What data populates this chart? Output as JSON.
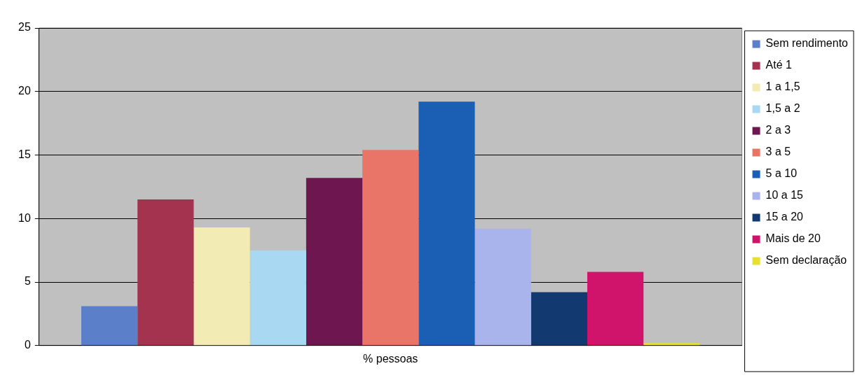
{
  "chart_data": {
    "type": "bar",
    "categories": [
      "% pessoas"
    ],
    "series": [
      {
        "name": "Sem rendimento",
        "color": "#5b7fc8",
        "values": [
          3.1
        ]
      },
      {
        "name": "Até 1",
        "color": "#a3334f",
        "values": [
          11.5
        ]
      },
      {
        "name": "1 a 1,5",
        "color": "#f2ecb4",
        "values": [
          9.3
        ]
      },
      {
        "name": "1,5 a 2",
        "color": "#a9d8f2",
        "values": [
          7.5
        ]
      },
      {
        "name": "2 a 3",
        "color": "#6e1650",
        "values": [
          13.2
        ]
      },
      {
        "name": "3 a 5",
        "color": "#e87567",
        "values": [
          15.4
        ]
      },
      {
        "name": "5 a 10",
        "color": "#1a5fb4",
        "values": [
          19.2
        ]
      },
      {
        "name": "10 a 15",
        "color": "#aab4ec",
        "values": [
          9.2
        ]
      },
      {
        "name": "15 a 20",
        "color": "#123a70",
        "values": [
          4.2
        ]
      },
      {
        "name": "Mais de 20",
        "color": "#d0146c",
        "values": [
          5.8
        ]
      },
      {
        "name": "Sem declaração",
        "color": "#e8e030",
        "values": [
          0.2
        ]
      }
    ],
    "ylim": [
      0,
      25
    ],
    "yticks": [
      0,
      5,
      10,
      15,
      20,
      25
    ],
    "grid": "y",
    "legend": "right"
  }
}
